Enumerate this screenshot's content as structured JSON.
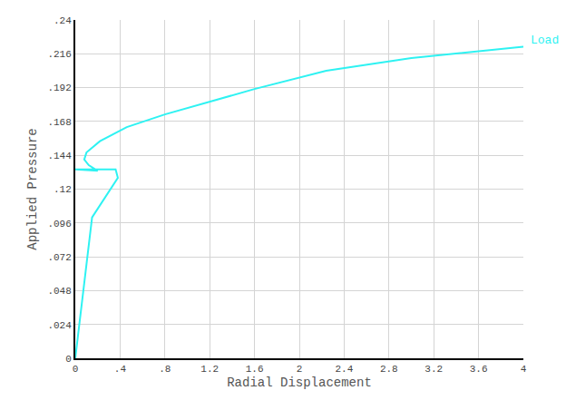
{
  "chart_data": {
    "type": "line",
    "x_label": "Radial Displacement",
    "y_label": "Applied Pressure",
    "series": [
      {
        "name": "Load",
        "color": "#2ef2f2",
        "x": [
          0,
          0.15,
          0.38,
          0.36,
          0,
          0.2,
          0.12,
          0.08,
          0.1,
          0.22,
          0.46,
          0.8,
          1.6,
          2.24,
          3.0,
          3.6,
          4.0
        ],
        "values": [
          0,
          0.1,
          0.128,
          0.134,
          0.134,
          0.133,
          0.137,
          0.141,
          0.146,
          0.154,
          0.164,
          0.173,
          0.191,
          0.204,
          0.213,
          0.218,
          0.221
        ]
      }
    ],
    "xlim": [
      0,
      4
    ],
    "ylim": [
      0,
      0.24
    ],
    "xticks": [
      0,
      {
        "value": 0.4,
        "label": ".4"
      },
      {
        "value": 0.8,
        "label": ".8"
      },
      1.2,
      1.6,
      2,
      2.4,
      2.8,
      3.2,
      3.6,
      4
    ],
    "yticks": [
      0,
      {
        "value": 0.024,
        "label": ".024"
      },
      {
        "value": 0.048,
        "label": ".048"
      },
      {
        "value": 0.072,
        "label": ".072"
      },
      {
        "value": 0.096,
        "label": ".096"
      },
      {
        "value": 0.12,
        "label": ".12"
      },
      {
        "value": 0.144,
        "label": ".144"
      },
      {
        "value": 0.168,
        "label": ".168"
      },
      {
        "value": 0.192,
        "label": ".192"
      },
      {
        "value": 0.216,
        "label": ".216"
      },
      {
        "value": 0.24,
        "label": ".24"
      }
    ],
    "grid": true
  }
}
